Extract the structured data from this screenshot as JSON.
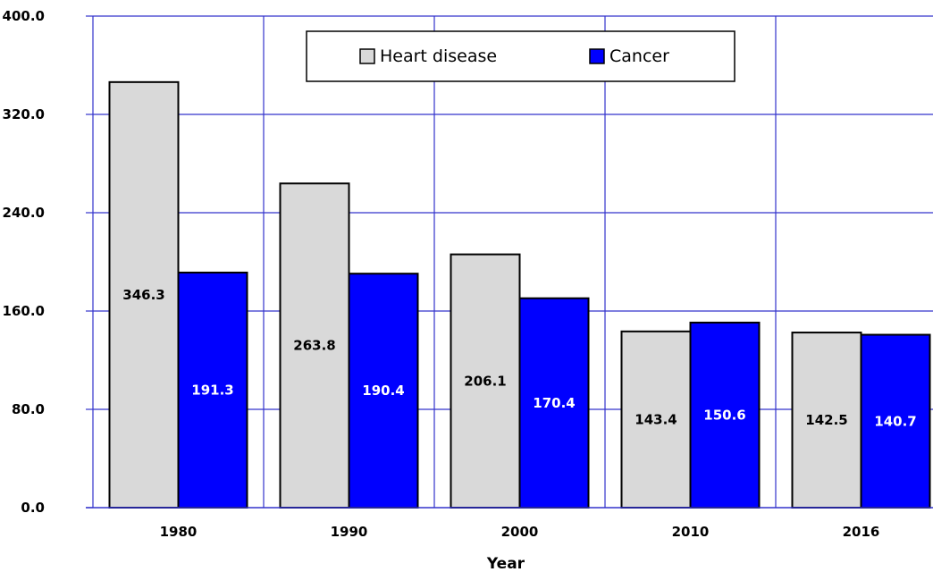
{
  "chart_data": {
    "type": "bar",
    "categories": [
      "1980",
      "1990",
      "2000",
      "2010",
      "2016"
    ],
    "series": [
      {
        "name": "Heart disease",
        "values": [
          346.3,
          263.8,
          206.1,
          143.4,
          142.5
        ],
        "labels": [
          "346.3",
          "263.8",
          "206.1",
          "143.4",
          "142.5"
        ],
        "color": "#d9d9d9",
        "label_color": "#000000"
      },
      {
        "name": "Cancer",
        "values": [
          191.3,
          190.4,
          170.4,
          150.6,
          140.7
        ],
        "labels": [
          "191.3",
          "190.4",
          "170.4",
          "150.6",
          "140.7"
        ],
        "color": "#0000ff",
        "label_color": "#ffffff"
      }
    ],
    "xlabel": "Year",
    "ylabel": "",
    "ylim": [
      0,
      400
    ],
    "yticks": [
      0,
      80,
      160,
      240,
      320,
      400
    ],
    "ytick_labels": [
      "0.0",
      "80.0",
      "160.0",
      "240.0",
      "320.0",
      "400.0"
    ],
    "grid": true,
    "grid_color": "#3333cc",
    "legend_position": "top-center"
  }
}
